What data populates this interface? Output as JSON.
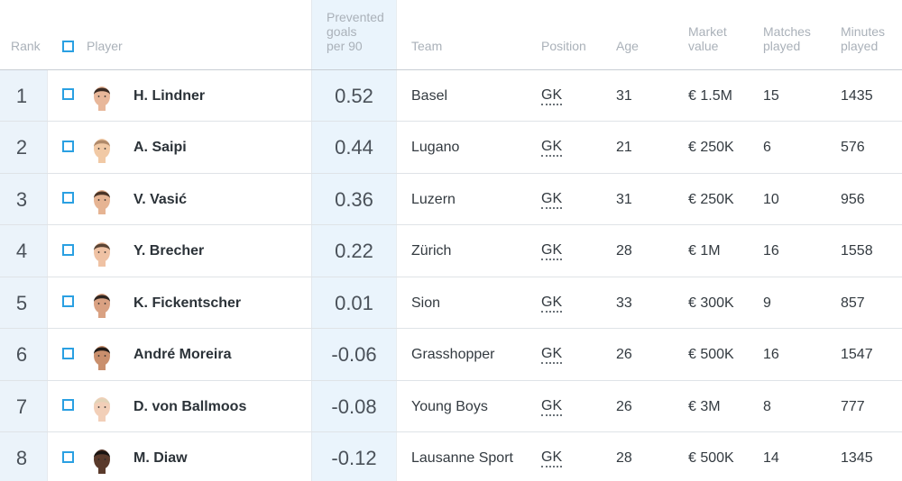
{
  "header": {
    "rank": "Rank",
    "player": "Player",
    "metric": "Prevented\ngoals\nper 90",
    "team": "Team",
    "position": "Position",
    "age": "Age",
    "market_value": "Market\nvalue",
    "matches_played": "Matches\nplayed",
    "minutes_played": "Minutes\nplayed"
  },
  "colors": {
    "accent": "#2aa0e2",
    "highlight_column": "#eaf4fc",
    "header_text": "#aab1b9"
  },
  "rows": [
    {
      "rank": "1",
      "name": "H. Lindner",
      "metric": "0.52",
      "team": "Basel",
      "position": "GK",
      "age": "31",
      "value": "€ 1.5M",
      "matches": "15",
      "minutes": "1435",
      "avatar": {
        "skin": "#e8b79a",
        "hair": "#3a2a22"
      }
    },
    {
      "rank": "2",
      "name": "A. Saipi",
      "metric": "0.44",
      "team": "Lugano",
      "position": "GK",
      "age": "21",
      "value": "€ 250K",
      "matches": "6",
      "minutes": "576",
      "avatar": {
        "skin": "#f1c9a5",
        "hair": "#b08a6a"
      }
    },
    {
      "rank": "3",
      "name": "V. Vasić",
      "metric": "0.36",
      "team": "Luzern",
      "position": "GK",
      "age": "31",
      "value": "€ 250K",
      "matches": "10",
      "minutes": "956",
      "avatar": {
        "skin": "#e6b493",
        "hair": "#4a3426"
      }
    },
    {
      "rank": "4",
      "name": "Y. Brecher",
      "metric": "0.22",
      "team": "Zürich",
      "position": "GK",
      "age": "28",
      "value": "€ 1M",
      "matches": "16",
      "minutes": "1558",
      "avatar": {
        "skin": "#efc2a4",
        "hair": "#5a4434"
      }
    },
    {
      "rank": "5",
      "name": "K. Fickentscher",
      "metric": "0.01",
      "team": "Sion",
      "position": "GK",
      "age": "33",
      "value": "€ 300K",
      "matches": "9",
      "minutes": "857",
      "avatar": {
        "skin": "#d9a182",
        "hair": "#2f2520"
      }
    },
    {
      "rank": "6",
      "name": "André Moreira",
      "metric": "-0.06",
      "team": "Grasshopper",
      "position": "GK",
      "age": "26",
      "value": "€ 500K",
      "matches": "16",
      "minutes": "1547",
      "avatar": {
        "skin": "#c98f6d",
        "hair": "#1f1a17"
      }
    },
    {
      "rank": "7",
      "name": "D. von Ballmoos",
      "metric": "-0.08",
      "team": "Young Boys",
      "position": "GK",
      "age": "26",
      "value": "€ 3M",
      "matches": "8",
      "minutes": "777",
      "avatar": {
        "skin": "#f2cfb8",
        "hair": "#e3d3b8"
      }
    },
    {
      "rank": "8",
      "name": "M. Diaw",
      "metric": "-0.12",
      "team": "Lausanne Sport",
      "position": "GK",
      "age": "28",
      "value": "€ 500K",
      "matches": "14",
      "minutes": "1345",
      "avatar": {
        "skin": "#5a3a2b",
        "hair": "#1a1411"
      }
    }
  ]
}
